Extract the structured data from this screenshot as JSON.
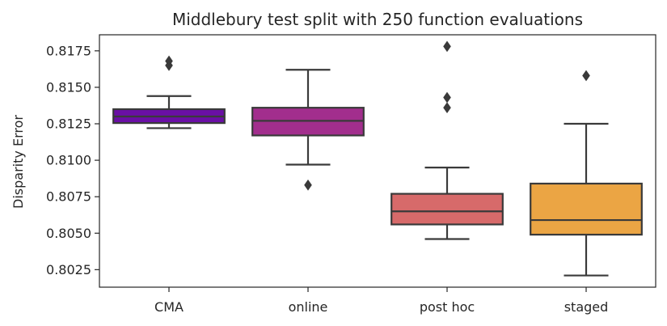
{
  "chart_data": {
    "type": "box",
    "title": "Middlebury test split with 250 function evaluations",
    "xlabel": "",
    "ylabel": "Disparity Error",
    "ylim": [
      0.8013,
      0.8186
    ],
    "yticks": [
      0.8025,
      0.805,
      0.8075,
      0.81,
      0.8125,
      0.815,
      0.8175
    ],
    "ytick_labels": [
      "0.8025",
      "0.8050",
      "0.8075",
      "0.8100",
      "0.8125",
      "0.8150",
      "0.8175"
    ],
    "grid": false,
    "categories": [
      "CMA",
      "online",
      "post hoc",
      "staged"
    ],
    "boxes": [
      {
        "category": "CMA",
        "color": "#6a0fa5",
        "whisker_low": 0.8122,
        "q1": 0.81255,
        "median": 0.813,
        "q3": 0.8135,
        "whisker_high": 0.8144,
        "outliers": [
          0.8165,
          0.8168
        ]
      },
      {
        "category": "online",
        "color": "#a22e8d",
        "whisker_low": 0.8097,
        "q1": 0.8117,
        "median": 0.8127,
        "q3": 0.8136,
        "whisker_high": 0.8162,
        "outliers": [
          0.8083
        ]
      },
      {
        "category": "post hoc",
        "color": "#d76a6a",
        "whisker_low": 0.8046,
        "q1": 0.8056,
        "median": 0.8065,
        "q3": 0.8077,
        "whisker_high": 0.8095,
        "outliers": [
          0.8136,
          0.8143,
          0.8178
        ]
      },
      {
        "category": "staged",
        "color": "#eba544",
        "whisker_low": 0.8021,
        "q1": 0.8049,
        "median": 0.8059,
        "q3": 0.8084,
        "whisker_high": 0.8125,
        "outliers": [
          0.8158
        ]
      }
    ],
    "line_color": "#3a3a3a"
  }
}
